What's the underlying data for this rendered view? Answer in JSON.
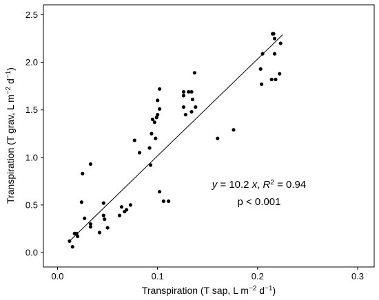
{
  "chart_data": {
    "type": "scatter",
    "xlabel": "Transpiration (T sap, L m",
    "xlabel_sup1": "−2",
    "xlabel_mid": " d",
    "xlabel_sup2": "−1",
    "xlabel_end": ")",
    "ylabel": "Transpiration (T grav, L m",
    "ylabel_sup1": "−2",
    "ylabel_mid": " d",
    "ylabel_sup2": "−1",
    "ylabel_end": ")",
    "xlim": [
      0,
      0.3
    ],
    "ylim": [
      0,
      2.5
    ],
    "x_ticks": [
      "0.0",
      "0.1",
      "0.2",
      "0.3"
    ],
    "x_tick_values": [
      0,
      0.1,
      0.2,
      0.3
    ],
    "y_ticks": [
      "0.0",
      "0.5",
      "1.0",
      "1.5",
      "2.0",
      "2.5"
    ],
    "y_tick_values": [
      0,
      0.5,
      1.0,
      1.5,
      2.0,
      2.5
    ],
    "grid": false,
    "points": [
      [
        0.012,
        0.12
      ],
      [
        0.015,
        0.06
      ],
      [
        0.017,
        0.2
      ],
      [
        0.019,
        0.2
      ],
      [
        0.02,
        0.17
      ],
      [
        0.024,
        0.53
      ],
      [
        0.025,
        0.83
      ],
      [
        0.027,
        0.36
      ],
      [
        0.033,
        0.93
      ],
      [
        0.033,
        0.3
      ],
      [
        0.033,
        0.27
      ],
      [
        0.042,
        0.21
      ],
      [
        0.046,
        0.52
      ],
      [
        0.046,
        0.39
      ],
      [
        0.047,
        0.35
      ],
      [
        0.05,
        0.26
      ],
      [
        0.062,
        0.39
      ],
      [
        0.064,
        0.48
      ],
      [
        0.067,
        0.43
      ],
      [
        0.069,
        0.45
      ],
      [
        0.073,
        0.5
      ],
      [
        0.077,
        1.18
      ],
      [
        0.082,
        1.05
      ],
      [
        0.092,
        1.1
      ],
      [
        0.093,
        0.92
      ],
      [
        0.094,
        1.25
      ],
      [
        0.095,
        1.4
      ],
      [
        0.097,
        1.37
      ],
      [
        0.098,
        1.2
      ],
      [
        0.099,
        1.42
      ],
      [
        0.1,
        1.45
      ],
      [
        0.1,
        1.6
      ],
      [
        0.102,
        1.72
      ],
      [
        0.102,
        1.51
      ],
      [
        0.102,
        0.64
      ],
      [
        0.106,
        0.54
      ],
      [
        0.111,
        0.54
      ],
      [
        0.126,
        1.65
      ],
      [
        0.126,
        1.69
      ],
      [
        0.126,
        1.53
      ],
      [
        0.128,
        1.45
      ],
      [
        0.131,
        1.69
      ],
      [
        0.134,
        1.48
      ],
      [
        0.134,
        1.69
      ],
      [
        0.135,
        1.61
      ],
      [
        0.137,
        1.89
      ],
      [
        0.138,
        1.53
      ],
      [
        0.16,
        1.2
      ],
      [
        0.176,
        1.29
      ],
      [
        0.203,
        1.93
      ],
      [
        0.204,
        1.77
      ],
      [
        0.205,
        2.09
      ],
      [
        0.214,
        1.82
      ],
      [
        0.215,
        2.3
      ],
      [
        0.216,
        2.3
      ],
      [
        0.217,
        2.09
      ],
      [
        0.217,
        2.25
      ],
      [
        0.218,
        1.82
      ],
      [
        0.222,
        1.88
      ],
      [
        0.223,
        2.2
      ]
    ],
    "fit_line": {
      "x": [
        0.012,
        0.225
      ],
      "y": [
        0.12,
        2.29
      ]
    },
    "annotation": {
      "line1_y": "y",
      "line1_eq": " = 10.2 ",
      "line1_x": "x",
      "line1_sep": ", ",
      "line1_R": "R",
      "line1_R_sup": "2",
      "line1_R_val": " = 0.94",
      "line2": "p < 0.001"
    }
  }
}
